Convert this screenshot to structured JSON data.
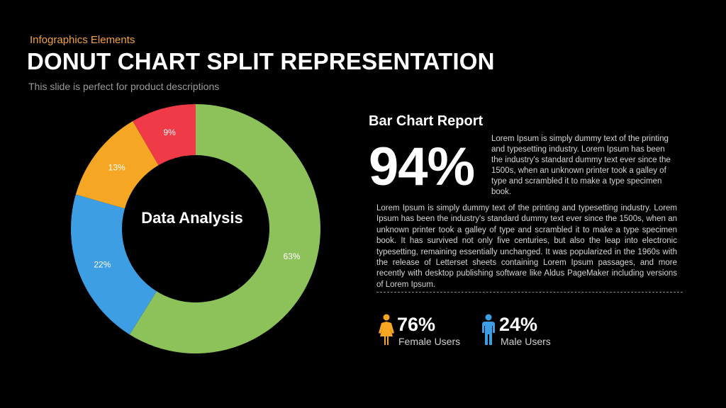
{
  "header": {
    "kicker": "Infographics  Elements",
    "title": "DONUT CHART SPLIT REPRESENTATION",
    "subtitle": "This slide is perfect for product descriptions"
  },
  "chart_data": {
    "type": "pie",
    "subtype": "donut",
    "center_label": "Data Analysis",
    "categories": [
      "63%",
      "22%",
      "13%",
      "9%"
    ],
    "values": [
      63,
      22,
      13,
      9
    ],
    "labels": [
      "63%",
      "22%",
      "13%",
      "9%"
    ],
    "colors": [
      "#8dc15a",
      "#3d9ee3",
      "#f5a623",
      "#f03a47"
    ],
    "legend": "none"
  },
  "report": {
    "heading": "Bar Chart Report",
    "big_percent": "94%",
    "para1": "Lorem Ipsum is simply dummy text of the printing and typesetting industry. Lorem Ipsum has been the industry's standard dummy text ever since the 1500s, when an unknown printer took a galley of type and scrambled it to make a type specimen book.",
    "para2": "Lorem Ipsum is simply dummy text of the printing and typesetting industry. Lorem Ipsum has been the industry's standard dummy text ever since the 1500s, when an unknown printer took a galley of type and scrambled it to make a type specimen book. It has survived not only five centuries, but also the leap into electronic typesetting, remaining essentially unchanged. It was popularized in the 1960s with the release of Letterset sheets containing Lorem Ipsum passages, and more recently with desktop publishing software like Aldus PageMaker including versions of Lorem Ipsum."
  },
  "stats": {
    "female": {
      "value": "76%",
      "label": "Female Users",
      "color": "#f5a623",
      "icon": "female-user-icon"
    },
    "male": {
      "value": "24%",
      "label": "Male Users",
      "color": "#3d9ee3",
      "icon": "male-user-icon"
    }
  }
}
